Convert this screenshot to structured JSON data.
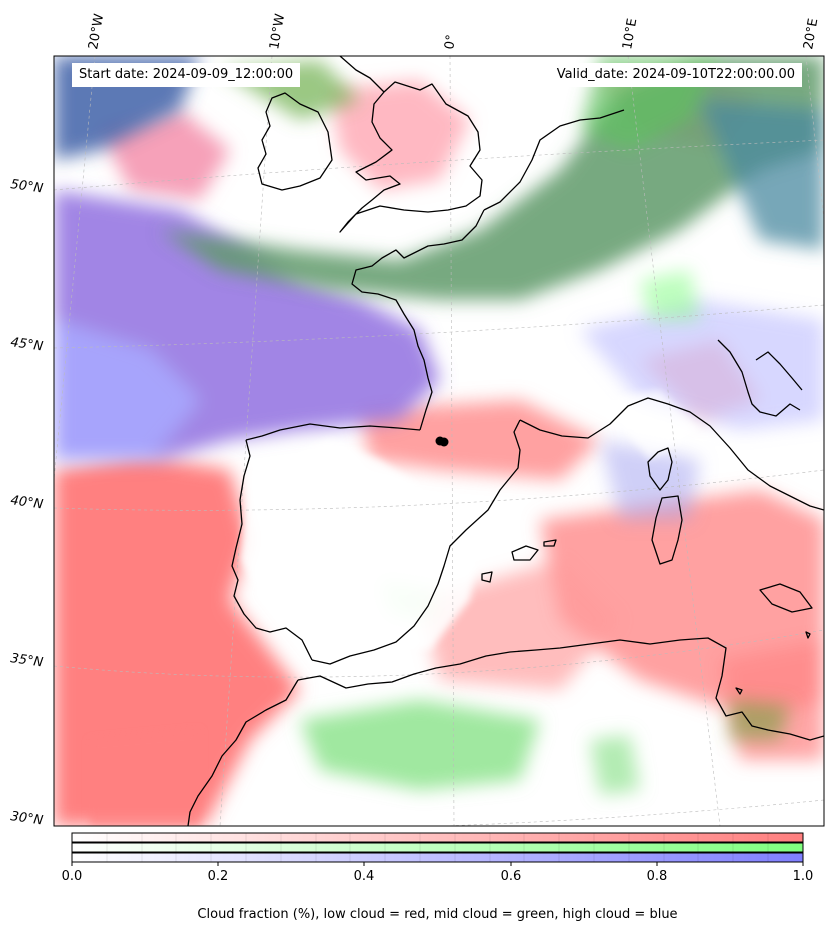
{
  "map": {
    "start_date": "Start date: 2024-09-09_12:00:00",
    "valid_date": "Valid_date: 2024-09-10T22:00:00.00",
    "lon_labels": [
      "20°W",
      "10°W",
      "0°",
      "10°E",
      "20°E"
    ],
    "lat_labels": [
      "50°N",
      "45°N",
      "40°N",
      "35°N",
      "30°N"
    ],
    "colors": {
      "low_cloud": "#ff7f7f",
      "mid_cloud": "#7fff7f",
      "high_cloud": "#7f7fff",
      "coastline": "#000000",
      "gridline": "#bbbbbb"
    },
    "marker": "black-dot"
  },
  "colorbar": {
    "ticks": [
      "0.0",
      "0.2",
      "0.4",
      "0.6",
      "0.8",
      "1.0"
    ],
    "caption": "Cloud fraction (%), low cloud = red, mid cloud = green, high cloud = blue"
  }
}
